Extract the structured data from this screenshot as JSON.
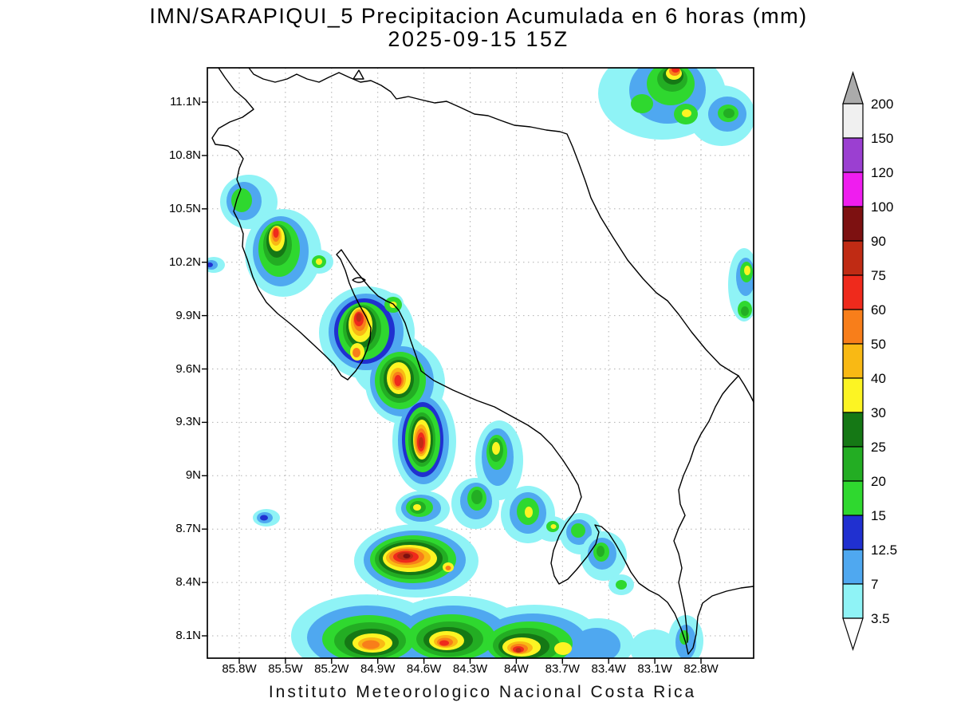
{
  "title": {
    "line1": "IMN/SARAPIQUI_5 Precipitacion Acumulada en 6 horas (mm)",
    "line2": "2025-09-15 15Z"
  },
  "footer": "Instituto Meteorologico Nacional Costa Rica",
  "map": {
    "x_ticks": [
      "85.8W",
      "85.5W",
      "85.2W",
      "84.9W",
      "84.6W",
      "84.3W",
      "84W",
      "83.7W",
      "83.4W",
      "83.1W",
      "82.8W"
    ],
    "y_ticks": [
      "11.1N",
      "10.8N",
      "10.5N",
      "10.2N",
      "9.9N",
      "9.6N",
      "9.3N",
      "9N",
      "8.7N",
      "8.4N",
      "8.1N"
    ],
    "palette": [
      "#8FF3F6",
      "#4FA8F0",
      "#2030D0",
      "#2FD82F",
      "#23AD23",
      "#157815",
      "#FCF423",
      "#F9B914",
      "#F87E1A",
      "#EF2A1C",
      "#C02B14",
      "#7D1111",
      "#EF1DEF",
      "#9B3FD1",
      "#F0F0F0"
    ],
    "grid_color": "#b0b0b0",
    "coast_color": "#000000"
  },
  "colorbar": {
    "units": "mm",
    "labels": [
      "200",
      "150",
      "120",
      "100",
      "90",
      "75",
      "60",
      "50",
      "40",
      "30",
      "25",
      "20",
      "15",
      "12.5",
      "7",
      "3.5"
    ],
    "levels_mm": [
      3.5,
      7,
      12.5,
      15,
      20,
      25,
      30,
      40,
      50,
      60,
      75,
      90,
      100,
      120,
      150,
      200
    ],
    "above_max_color": "#ABABAB",
    "below_min_color": "#FFFFFF"
  }
}
